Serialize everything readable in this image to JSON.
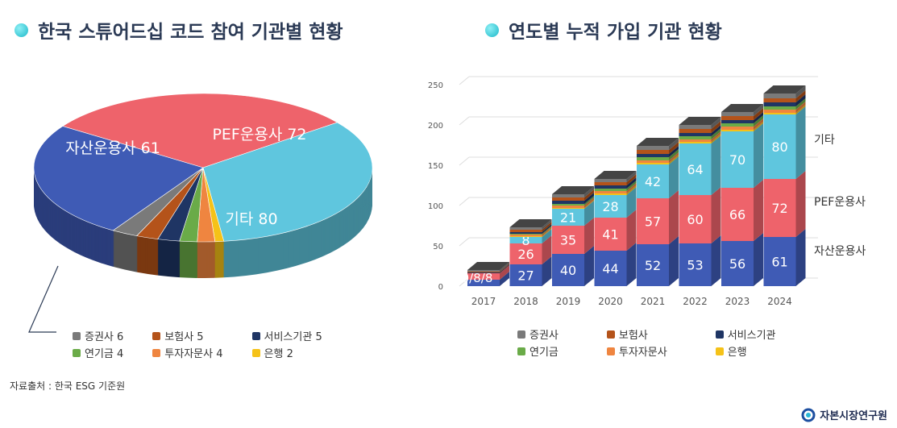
{
  "titles": {
    "left": "한국 스튜어드십 코드 참여 기관별 현황",
    "right": "연도별 누적 가입 기관 현황"
  },
  "source": "자료출처 : 한국 ESG 기준원",
  "logo": "자본시장연구원",
  "colors": {
    "자산운용사": "#3f5bb5",
    "PEF운용사": "#ee636b",
    "기타": "#5fc6de",
    "은행": "#f5c218",
    "투자자문사": "#ef8540",
    "연기금": "#6aab48",
    "서비스기관": "#1f3564",
    "보험사": "#b4531a",
    "증권사": "#7a7a7a"
  },
  "chart_data": [
    {
      "type": "pie",
      "title": "한국 스튜어드십 코드 참여 기관별 현황",
      "slices": [
        {
          "name": "PEF운용사",
          "value": 72
        },
        {
          "name": "기타",
          "value": 80
        },
        {
          "name": "은행",
          "value": 2
        },
        {
          "name": "투자자문사",
          "value": 4
        },
        {
          "name": "연기금",
          "value": 4
        },
        {
          "name": "서비스기관",
          "value": 5
        },
        {
          "name": "보험사",
          "value": 5
        },
        {
          "name": "증권사",
          "value": 6
        },
        {
          "name": "자산운용사",
          "value": 61
        }
      ],
      "big_labels": [
        "PEF운용사 72",
        "기타 80",
        "자산운용사 61"
      ],
      "legend": [
        "증권사 6",
        "보험사 5",
        "서비스기관 5",
        "연기금 4",
        "투자자문사 4",
        "은행 2"
      ]
    },
    {
      "type": "bar",
      "stacked": true,
      "title": "연도별 누적 가입 기관 현황",
      "categories": [
        "2017",
        "2018",
        "2019",
        "2020",
        "2021",
        "2022",
        "2023",
        "2024"
      ],
      "ylim": [
        0,
        250
      ],
      "yticks": [
        0,
        50,
        100,
        150,
        200,
        250
      ],
      "grid": true,
      "series": [
        {
          "name": "자산운용사",
          "values": [
            8,
            27,
            40,
            44,
            52,
            53,
            56,
            61
          ]
        },
        {
          "name": "PEF운용사",
          "values": [
            8,
            26,
            35,
            41,
            57,
            60,
            66,
            72
          ]
        },
        {
          "name": "기타",
          "values": [
            0,
            8,
            21,
            28,
            42,
            64,
            70,
            80
          ]
        },
        {
          "name": "은행",
          "values": [
            0,
            1,
            1,
            2,
            2,
            2,
            2,
            2
          ]
        },
        {
          "name": "투자자문사",
          "values": [
            0,
            2,
            3,
            3,
            3,
            3,
            4,
            4
          ]
        },
        {
          "name": "연기금",
          "values": [
            0,
            1,
            2,
            3,
            4,
            4,
            4,
            4
          ]
        },
        {
          "name": "서비스기관",
          "values": [
            1,
            2,
            4,
            4,
            4,
            4,
            4,
            5
          ]
        },
        {
          "name": "보험사",
          "values": [
            1,
            3,
            4,
            4,
            5,
            5,
            5,
            5
          ]
        },
        {
          "name": "증권사",
          "values": [
            2,
            3,
            4,
            4,
            5,
            5,
            5,
            6
          ]
        }
      ],
      "label_override_2017": "0/8/8",
      "side_labels": [
        "기타",
        "PEF운용사",
        "자산운용사"
      ],
      "legend": [
        "증권사",
        "보험사",
        "서비스기관",
        "연기금",
        "투자자문사",
        "은행"
      ]
    }
  ]
}
